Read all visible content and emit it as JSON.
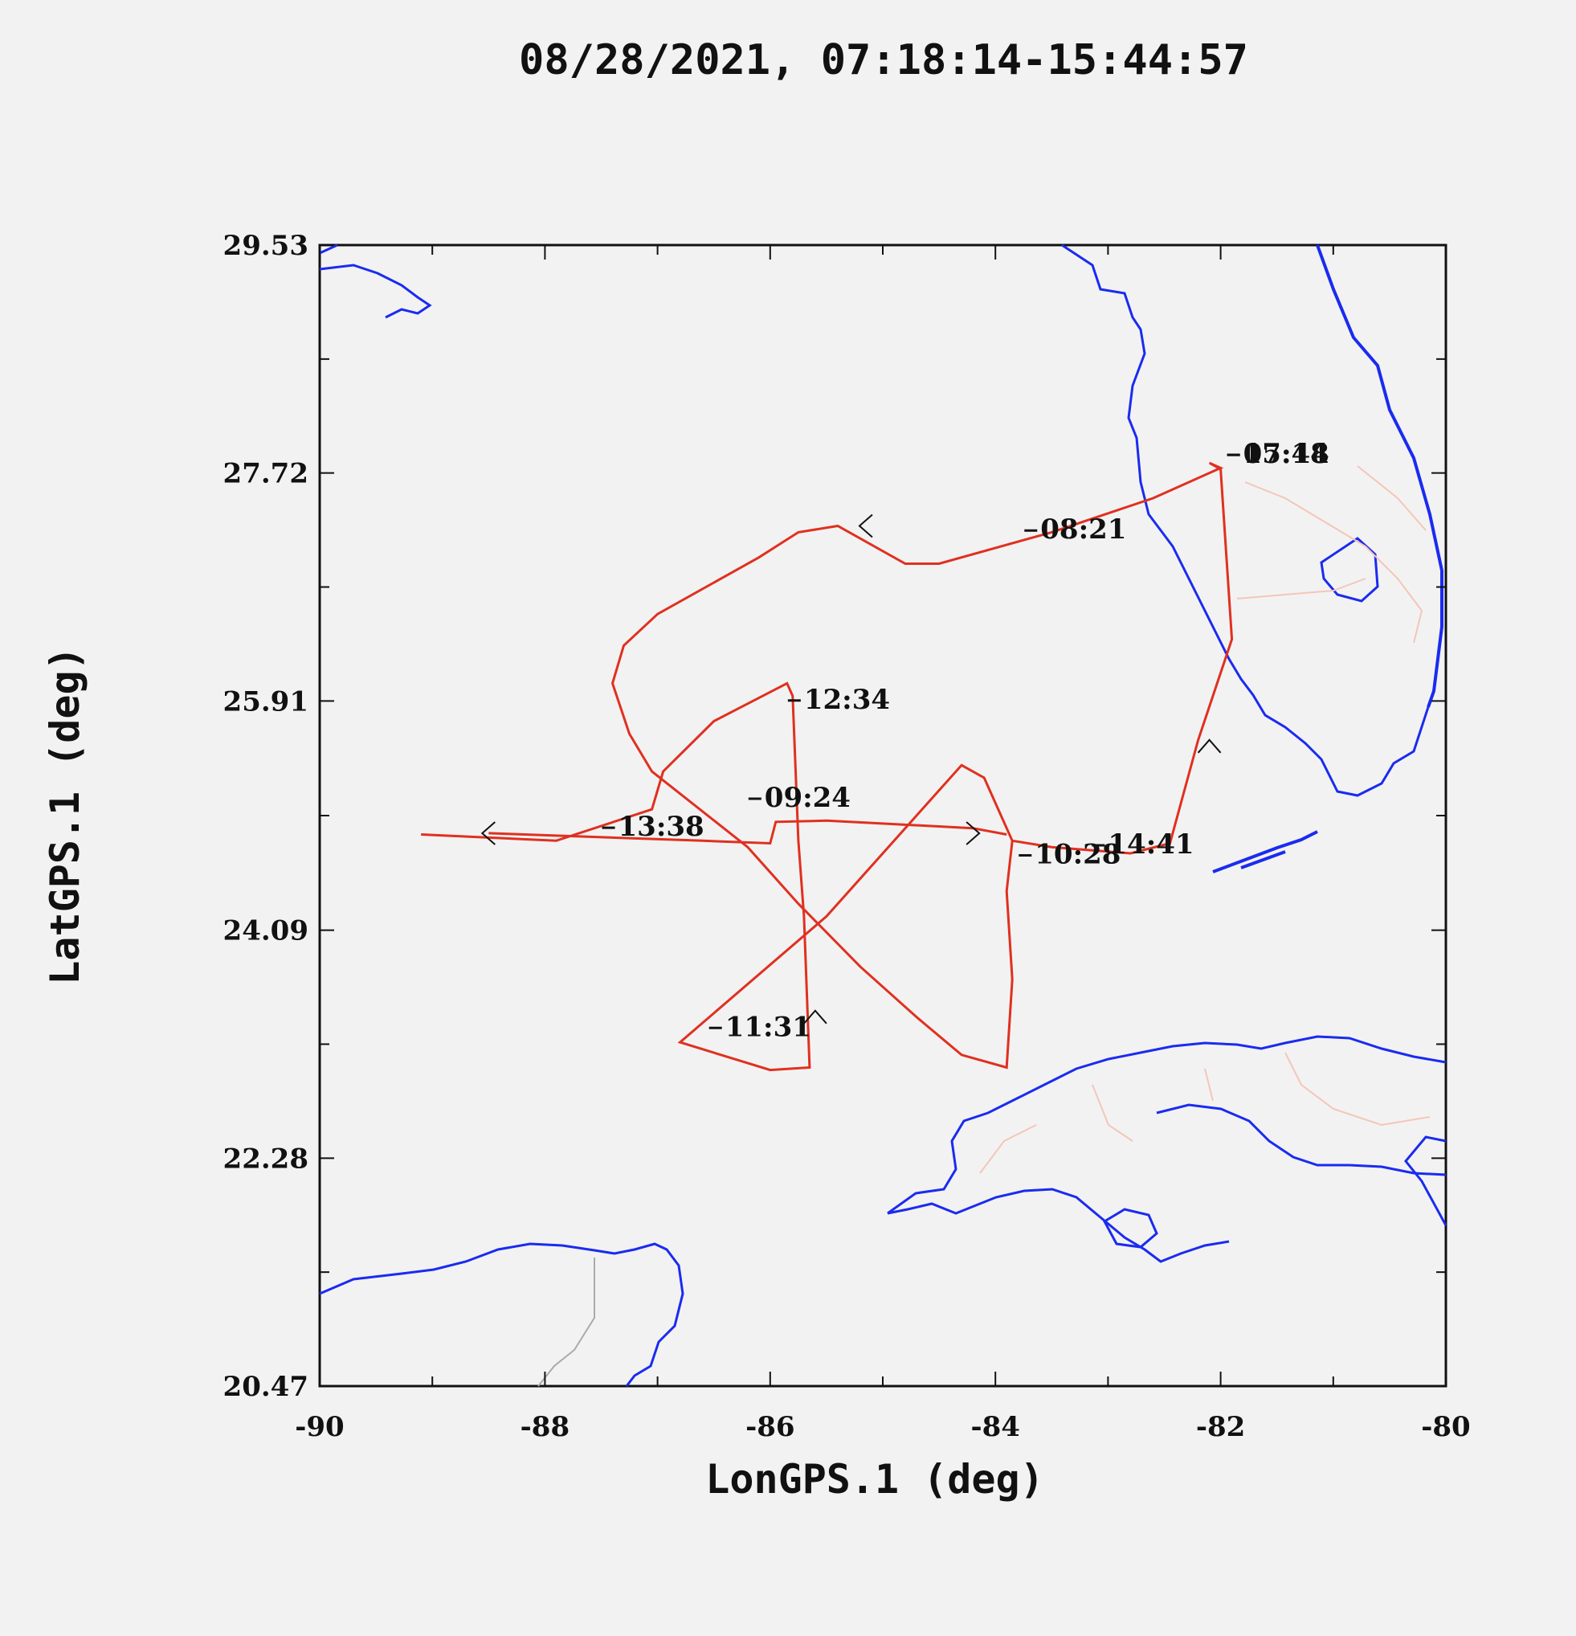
{
  "chart_data": {
    "type": "line",
    "title": "08/28/2021, 07:18:14-15:44:57",
    "xlabel": "LonGPS.1 (deg)",
    "ylabel": "LatGPS.1 (deg)",
    "xlim": [
      -90,
      -80
    ],
    "ylim": [
      20.47,
      29.53
    ],
    "x_ticks": [
      "-90",
      "-88",
      "-86",
      "-84",
      "-82",
      "-80"
    ],
    "y_ticks": [
      "20.47",
      "22.28",
      "24.09",
      "25.91",
      "27.72",
      "29.53"
    ],
    "grid": false,
    "series": [
      {
        "color": "#e03020",
        "points": [
          [
            -82.1,
            27.8
          ],
          [
            -82.0,
            27.76
          ],
          [
            -82.6,
            27.52
          ],
          [
            -83.5,
            27.25
          ],
          [
            -84.5,
            27.0
          ],
          [
            -84.8,
            27.0
          ],
          [
            -85.4,
            27.3
          ],
          [
            -85.75,
            27.25
          ],
          [
            -86.1,
            27.05
          ],
          [
            -87.0,
            26.6
          ],
          [
            -87.3,
            26.35
          ],
          [
            -87.4,
            26.05
          ],
          [
            -87.25,
            25.65
          ],
          [
            -87.05,
            25.35
          ],
          [
            -86.2,
            24.75
          ],
          [
            -85.75,
            24.3
          ],
          [
            -85.2,
            23.8
          ],
          [
            -84.7,
            23.4
          ],
          [
            -84.3,
            23.1
          ],
          [
            -83.9,
            23.0
          ],
          [
            -83.85,
            23.7
          ],
          [
            -83.9,
            24.4
          ],
          [
            -83.85,
            24.8
          ],
          [
            -83.5,
            24.75
          ],
          [
            -82.8,
            24.7
          ],
          [
            -82.45,
            24.78
          ],
          [
            -82.2,
            25.6
          ],
          [
            -81.9,
            26.4
          ],
          [
            -82.0,
            27.75
          ],
          [
            -82.1,
            27.8
          ]
        ]
      },
      {
        "color": "#e03020",
        "points": [
          [
            -89.1,
            24.85
          ],
          [
            -87.9,
            24.8
          ],
          [
            -87.05,
            25.05
          ],
          [
            -86.95,
            25.35
          ],
          [
            -86.5,
            25.75
          ],
          [
            -85.85,
            26.05
          ],
          [
            -85.8,
            25.95
          ],
          [
            -85.75,
            24.8
          ],
          [
            -85.7,
            24.2
          ],
          [
            -85.65,
            23.0
          ],
          [
            -86.0,
            22.98
          ],
          [
            -86.8,
            23.2
          ],
          [
            -85.5,
            24.2
          ],
          [
            -84.3,
            25.4
          ],
          [
            -84.1,
            25.3
          ],
          [
            -83.85,
            24.8
          ]
        ]
      },
      {
        "color": "#e03020",
        "points": [
          [
            -88.5,
            24.86
          ],
          [
            -86.6,
            24.8
          ],
          [
            -86.0,
            24.78
          ],
          [
            -85.95,
            24.95
          ],
          [
            -85.5,
            24.96
          ],
          [
            -84.2,
            24.9
          ],
          [
            -83.9,
            24.85
          ]
        ]
      }
    ],
    "time_labels": [
      {
        "text": "07:18",
        "lon": -81.8,
        "lat": 27.8
      },
      {
        "text": "15:44",
        "lon": -81.8,
        "lat": 27.8
      },
      {
        "text": "08:21",
        "lon": -83.6,
        "lat": 27.2
      },
      {
        "text": "12:34",
        "lon": -85.7,
        "lat": 25.85
      },
      {
        "text": "09:24",
        "lon": -86.05,
        "lat": 25.07
      },
      {
        "text": "13:38",
        "lon": -87.35,
        "lat": 24.84
      },
      {
        "text": "10:28",
        "lon": -83.65,
        "lat": 24.62
      },
      {
        "text": "14:41",
        "lon": -83.0,
        "lat": 24.7
      },
      {
        "text": "11:31",
        "lon": -86.4,
        "lat": 23.25
      }
    ],
    "direction_marks": [
      {
        "dir": "<",
        "lon": -88.5,
        "lat": 24.86
      },
      {
        "dir": "<",
        "lon": -85.15,
        "lat": 27.3
      },
      {
        "dir": ">",
        "lon": -84.2,
        "lat": 24.86
      },
      {
        "dir": "^",
        "lon": -85.6,
        "lat": 23.4
      },
      {
        "dir": "^",
        "lon": -82.1,
        "lat": 25.55
      }
    ],
    "map_colors": {
      "coastline": "#1a2bf0",
      "borders": "#f4c6b8",
      "track": "#e03020",
      "background": "#f2f2f2",
      "frame": "#111111",
      "text": "#111111"
    }
  }
}
